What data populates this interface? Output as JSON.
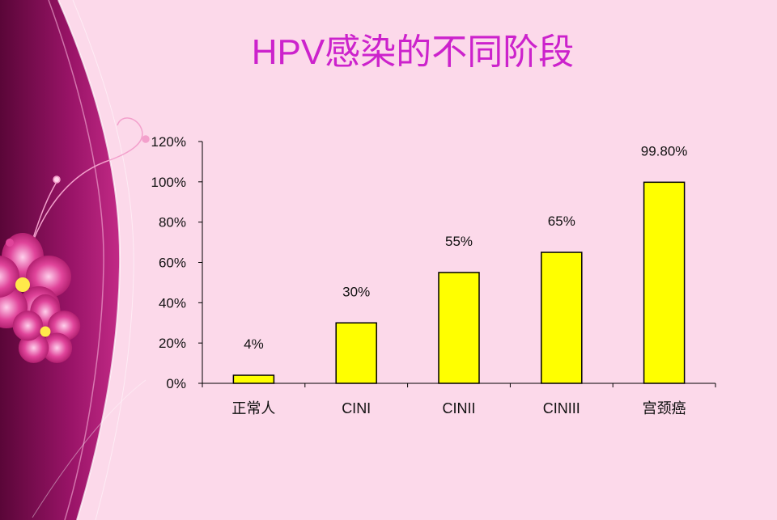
{
  "colors": {
    "background": "#fcd9ea",
    "title": "#cc22cc",
    "bar_fill": "#ffff00",
    "bar_stroke": "#000000",
    "panel_dark": "#8a0d5c",
    "flower": "#e0449a"
  },
  "decor": {
    "left_panel": "magenta-gradient-panel",
    "flowers": "pink-flower-icons"
  },
  "chart_data": {
    "type": "bar",
    "title": "HPV感染的不同阶段",
    "categories": [
      "正常人",
      "CINI",
      "CINII",
      "CINIII",
      "宫颈癌"
    ],
    "values": [
      4,
      30,
      55,
      65,
      99.8
    ],
    "data_labels": [
      "4%",
      "30%",
      "55%",
      "65%",
      "99.80%"
    ],
    "ylim": [
      0,
      120
    ],
    "yticks": [
      0,
      20,
      40,
      60,
      80,
      100,
      120
    ],
    "ytick_labels": [
      "0%",
      "20%",
      "40%",
      "60%",
      "80%",
      "100%",
      "120%"
    ],
    "xlabel": "",
    "ylabel": "",
    "grid": false,
    "legend": "none"
  }
}
